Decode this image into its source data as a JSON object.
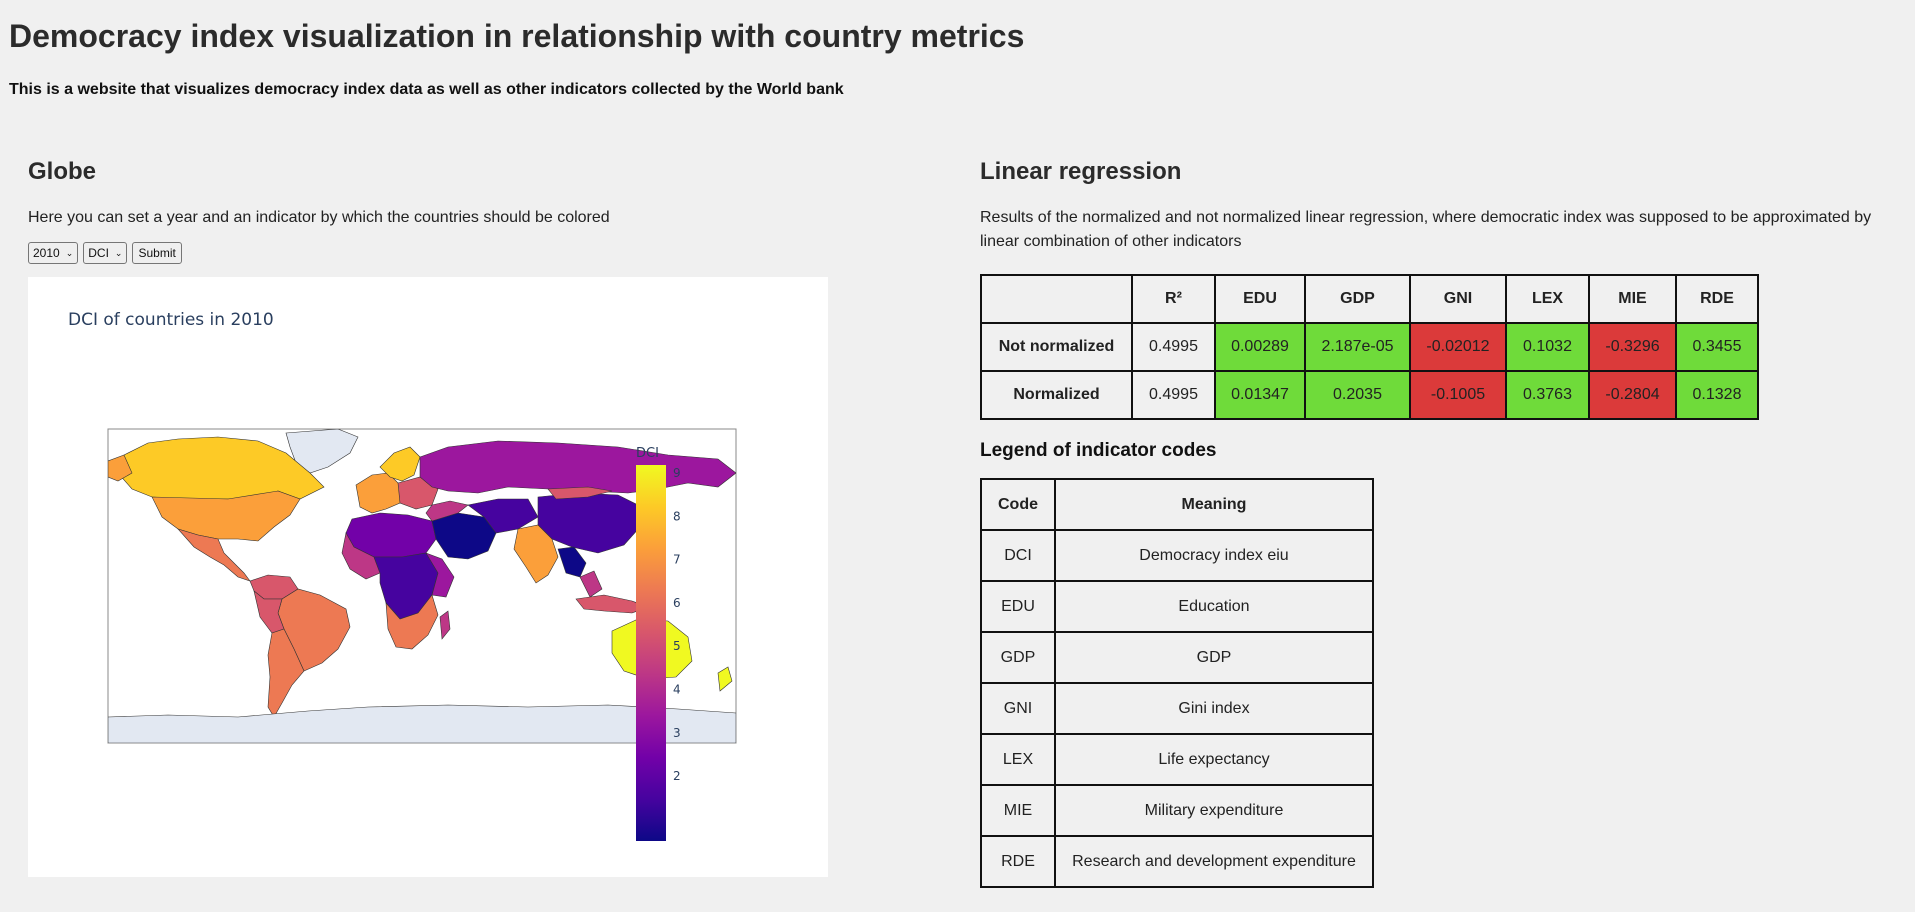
{
  "header": {
    "title": "Democracy index visualization in relationship with country metrics",
    "subtitle": "This is a website that visualizes democracy index data as well as other indicators collected by the World bank"
  },
  "globe": {
    "heading": "Globe",
    "description": "Here you can set a year and an indicator by which the countries should be colored",
    "year_value": "2010",
    "indicator_value": "DCI",
    "submit_label": "Submit",
    "map_title": "DCI of countries in 2010",
    "colorbar_title": "DCI",
    "colorbar_ticks": [
      "9",
      "8",
      "7",
      "6",
      "5",
      "4",
      "3",
      "2"
    ],
    "colorscale": [
      "#0d0887",
      "#46039f",
      "#7201a8",
      "#9c179e",
      "#bd3786",
      "#d8576b",
      "#ed7953",
      "#fb9f3a",
      "#fdca26",
      "#f0f921"
    ]
  },
  "regression": {
    "heading": "Linear regression",
    "description": "Results of the normalized and not normalized linear regression, where democratic index was supposed to be approximated by linear combination of other indicators",
    "columns": [
      "",
      "R²",
      "EDU",
      "GDP",
      "GNI",
      "LEX",
      "MIE",
      "RDE"
    ],
    "rows": [
      {
        "label": "Not normalized",
        "values": [
          "0.4995",
          "0.00289",
          "2.187e-05",
          "-0.02012",
          "0.1032",
          "-0.3296",
          "0.3455"
        ]
      },
      {
        "label": "Normalized",
        "values": [
          "0.4995",
          "0.01347",
          "0.2035",
          "-0.1005",
          "0.3763",
          "-0.2804",
          "0.1328"
        ]
      }
    ],
    "positive_color": "#6fdb3a",
    "negative_color": "#db3a3a"
  },
  "legend": {
    "heading": "Legend of indicator codes",
    "columns": [
      "Code",
      "Meaning"
    ],
    "rows": [
      [
        "DCI",
        "Democracy index eiu"
      ],
      [
        "EDU",
        "Education"
      ],
      [
        "GDP",
        "GDP"
      ],
      [
        "GNI",
        "Gini index"
      ],
      [
        "LEX",
        "Life expectancy"
      ],
      [
        "MIE",
        "Military expenditure"
      ],
      [
        "RDE",
        "Research and development expenditure"
      ]
    ]
  }
}
